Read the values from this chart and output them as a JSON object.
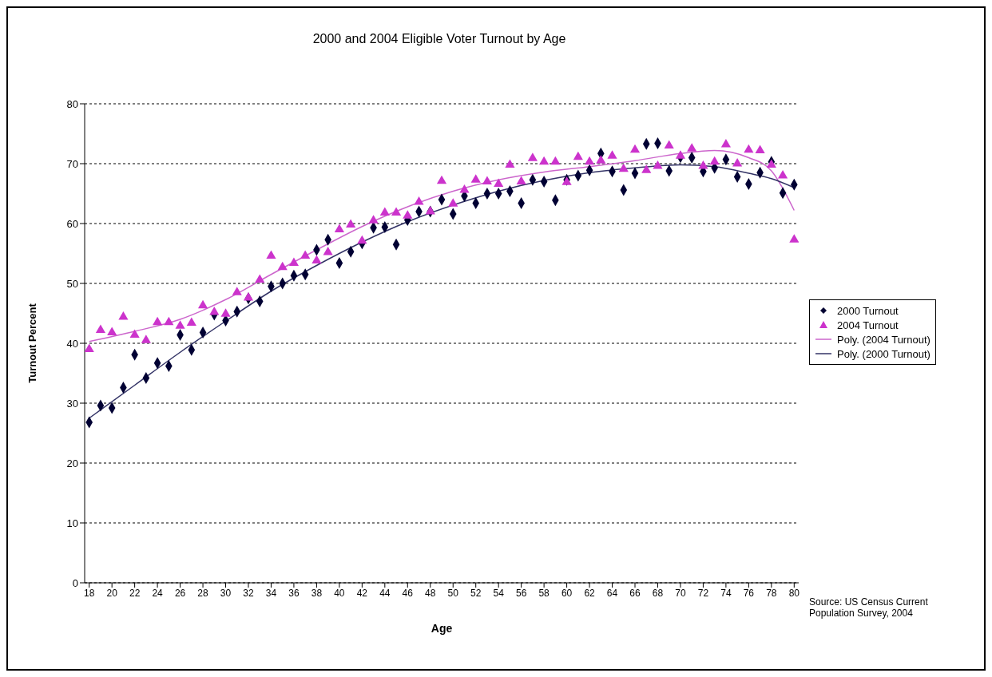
{
  "chart_data": {
    "type": "scatter",
    "title": "2000 and 2004 Eligible Voter Turnout by Age",
    "xlabel": "Age",
    "ylabel": "Turnout Percent",
    "x": [
      18,
      19,
      20,
      21,
      22,
      23,
      24,
      25,
      26,
      27,
      28,
      29,
      30,
      31,
      32,
      33,
      34,
      35,
      36,
      37,
      38,
      39,
      40,
      41,
      42,
      43,
      44,
      45,
      46,
      47,
      48,
      49,
      50,
      51,
      52,
      53,
      54,
      55,
      56,
      57,
      58,
      59,
      60,
      61,
      62,
      63,
      64,
      65,
      66,
      67,
      68,
      69,
      70,
      71,
      72,
      73,
      74,
      75,
      76,
      77,
      78,
      79,
      80
    ],
    "series": [
      {
        "name": "2000 Turnout",
        "marker": "diamond",
        "color": "#000033",
        "values": [
          26.8,
          29.6,
          29.2,
          32.6,
          38.1,
          34.2,
          36.7,
          36.2,
          41.4,
          38.9,
          41.8,
          44.8,
          43.8,
          45.3,
          47.5,
          47.0,
          49.5,
          50.0,
          51.3,
          51.5,
          55.6,
          57.3,
          53.4,
          55.3,
          56.7,
          59.3,
          59.4,
          56.5,
          60.6,
          62.0,
          62.0,
          64.0,
          61.6,
          64.6,
          63.4,
          65.0,
          65.0,
          65.4,
          63.4,
          67.3,
          67.0,
          63.9,
          67.3,
          68.0,
          68.9,
          71.7,
          68.7,
          65.6,
          68.4,
          73.3,
          73.4,
          68.8,
          71.1,
          71.0,
          68.7,
          69.3,
          70.7,
          67.8,
          66.6,
          68.5,
          70.3,
          65.1,
          66.5
        ]
      },
      {
        "name": "2004 Turnout",
        "marker": "triangle",
        "color": "#cc33cc",
        "values": [
          39.0,
          42.2,
          41.8,
          44.4,
          41.4,
          40.5,
          43.5,
          43.5,
          42.9,
          43.4,
          46.3,
          45.2,
          44.9,
          48.5,
          47.6,
          50.6,
          54.6,
          52.7,
          53.4,
          54.6,
          53.8,
          55.2,
          59.0,
          59.8,
          57.1,
          60.5,
          61.8,
          61.8,
          61.3,
          63.6,
          62.0,
          67.1,
          63.3,
          65.6,
          67.3,
          67.0,
          66.6,
          69.8,
          67.0,
          70.9,
          70.3,
          70.3,
          66.9,
          71.1,
          70.3,
          70.5,
          71.3,
          69.1,
          72.3,
          68.9,
          69.6,
          73.0,
          71.3,
          72.5,
          69.6,
          70.3,
          73.2,
          70.0,
          72.3,
          72.2,
          69.8,
          68.0,
          57.3
        ]
      },
      {
        "name": "Poly. (2004 Turnout)",
        "type": "line",
        "marker": "none",
        "color": "#cc66cc",
        "x": [
          18,
          22,
          26,
          30,
          34,
          38,
          42,
          46,
          50,
          54,
          58,
          62,
          66,
          70,
          73,
          76,
          78,
          80
        ],
        "values": [
          40.3,
          42.0,
          44.0,
          47.3,
          51.5,
          55.6,
          59.5,
          62.8,
          65.4,
          67.3,
          68.6,
          69.5,
          70.5,
          71.7,
          72.2,
          71.0,
          68.8,
          62.2
        ]
      },
      {
        "name": "Poly. (2000 Turnout)",
        "type": "line",
        "marker": "none",
        "color": "#333366",
        "x": [
          18,
          22,
          26,
          30,
          34,
          38,
          42,
          46,
          51,
          54,
          58,
          62,
          66,
          70,
          73,
          76,
          78,
          80
        ],
        "values": [
          27.5,
          33.0,
          38.5,
          43.7,
          48.7,
          53.0,
          56.9,
          60.3,
          63.7,
          65.4,
          67.2,
          68.5,
          69.3,
          69.8,
          69.5,
          68.4,
          67.5,
          66.0
        ]
      }
    ],
    "xlim": [
      17.6,
      80.4
    ],
    "xticks": [
      18,
      20,
      22,
      24,
      26,
      28,
      30,
      32,
      34,
      36,
      38,
      40,
      42,
      44,
      46,
      48,
      50,
      52,
      54,
      56,
      58,
      60,
      62,
      64,
      66,
      68,
      70,
      72,
      74,
      76,
      78,
      80
    ],
    "ylim": [
      0,
      80
    ],
    "yticks": [
      0,
      10,
      20,
      30,
      40,
      50,
      60,
      70,
      80
    ],
    "grid": "y",
    "legend": "right",
    "annotations": [
      "Source: US Census Current Population Survey, 2004"
    ]
  }
}
